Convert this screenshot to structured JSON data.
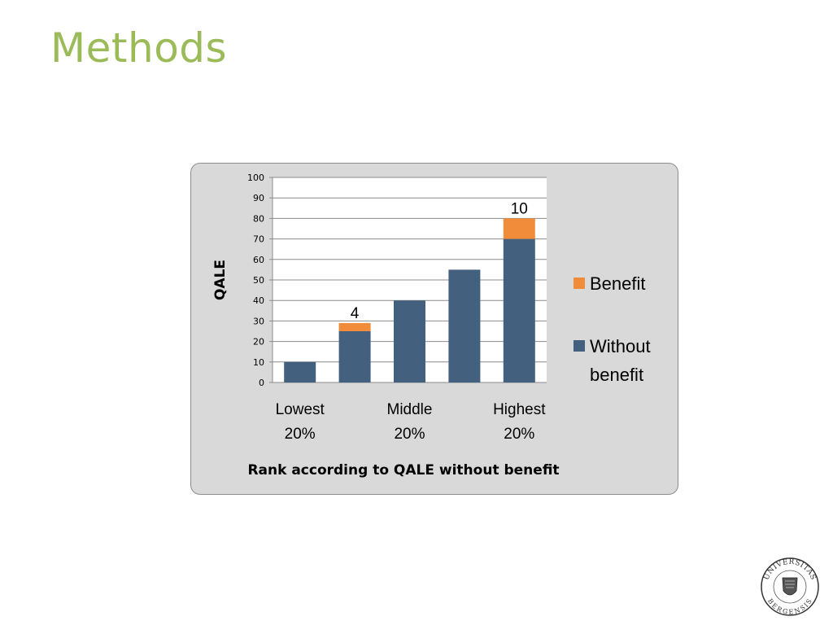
{
  "slide": {
    "title": "Methods"
  },
  "colors": {
    "title": "#9bbb59",
    "benefit": "#f08c3a",
    "without_benefit": "#44607f",
    "chart_bg": "#d9d9d9",
    "plot_bg": "#ffffff",
    "gridline": "#8c8c8c"
  },
  "chart_data": {
    "type": "bar",
    "stacked": true,
    "categories": [
      [
        "Lowest",
        "20%"
      ],
      [
        "",
        ""
      ],
      [
        "Middle",
        "20%"
      ],
      [
        "",
        ""
      ],
      [
        "Highest",
        "20%"
      ]
    ],
    "series": [
      {
        "name": "Without benefit",
        "legend_lines": [
          "Without",
          "benefit"
        ],
        "values": [
          10,
          25,
          40,
          55,
          70
        ]
      },
      {
        "name": "Benefit",
        "legend_lines": [
          "Benefit"
        ],
        "values": [
          0,
          4,
          0,
          0,
          10
        ]
      }
    ],
    "data_labels": [
      "",
      "4",
      "",
      "",
      "10"
    ],
    "title": "",
    "xlabel": "Rank according to QALE without benefit",
    "ylabel": "QALE",
    "ylim": [
      0,
      100
    ],
    "yticks": [
      0,
      10,
      20,
      30,
      40,
      50,
      60,
      70,
      80,
      90,
      100
    ],
    "grid": true,
    "legend_position": "right"
  },
  "seal": {
    "text_top": "UNIVERSITAS",
    "text_bottom": "BERGENSIS",
    "icon": "university-seal-icon"
  }
}
